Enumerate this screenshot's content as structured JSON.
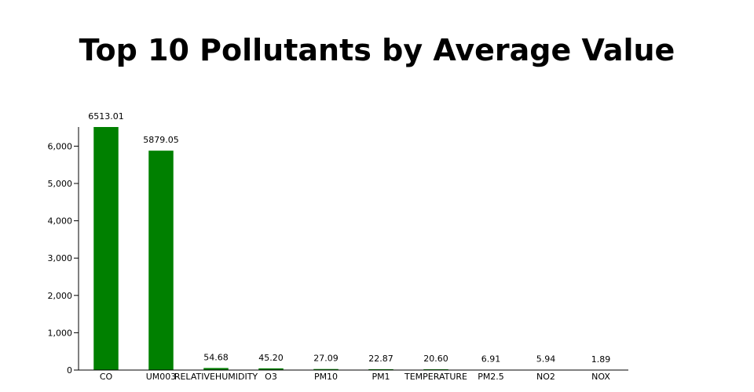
{
  "chart_data": {
    "type": "bar",
    "title": "Top 10 Pollutants by Average Value",
    "xlabel": "",
    "ylabel": "",
    "categories": [
      "CO",
      "UM003",
      "RELATIVEHUMIDITY",
      "O3",
      "PM10",
      "PM1",
      "TEMPERATURE",
      "PM2.5",
      "NO2",
      "NOX"
    ],
    "values": [
      6513.01,
      5879.05,
      54.68,
      45.2,
      27.09,
      22.87,
      20.6,
      6.91,
      5.94,
      1.89
    ],
    "value_labels": [
      "6513.01",
      "5879.05",
      "54.68",
      "45.20",
      "27.09",
      "22.87",
      "20.60",
      "6.91",
      "5.94",
      "1.89"
    ],
    "ylim": [
      0,
      6513.01
    ],
    "yticks": [
      0,
      1000,
      2000,
      3000,
      4000,
      5000,
      6000
    ],
    "ytick_labels": [
      "0",
      "1,000",
      "2,000",
      "3,000",
      "4,000",
      "5,000",
      "6,000"
    ],
    "bar_color": "#008000",
    "grid": false,
    "legend": "none"
  }
}
